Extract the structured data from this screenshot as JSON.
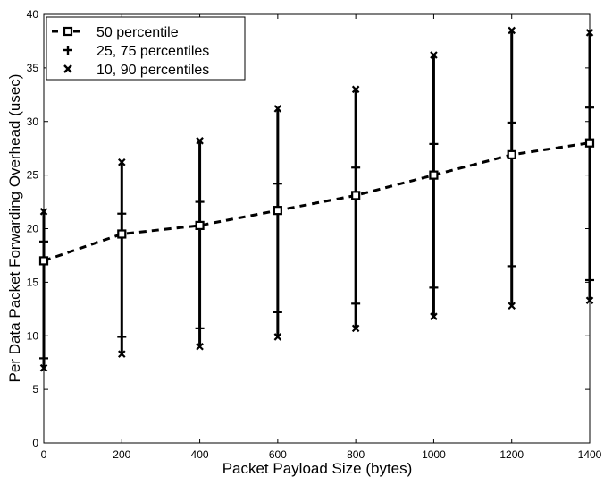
{
  "chart_data": {
    "type": "line",
    "xlabel": "Packet Payload Size (bytes)",
    "ylabel": "Per Data Packet Forwarding Overhead (usec)",
    "xlim": [
      0,
      1400
    ],
    "ylim": [
      0,
      40
    ],
    "xticks": [
      0,
      200,
      400,
      600,
      800,
      1000,
      1200,
      1400
    ],
    "yticks": [
      0,
      5,
      10,
      15,
      20,
      25,
      30,
      35,
      40
    ],
    "grid": false,
    "legend_position": "top-left",
    "x": [
      0,
      200,
      400,
      600,
      800,
      1000,
      1200,
      1400
    ],
    "series": [
      {
        "name": "50 percentile",
        "values": [
          17.0,
          19.5,
          20.3,
          21.7,
          23.1,
          25.0,
          26.9,
          28.0
        ]
      },
      {
        "name": "25, 75 percentiles",
        "low": [
          7.9,
          9.9,
          10.7,
          12.2,
          13.0,
          14.5,
          16.5,
          15.2
        ],
        "high": [
          18.8,
          21.4,
          22.5,
          24.2,
          25.7,
          27.9,
          29.9,
          31.3
        ]
      },
      {
        "name": "10, 90 percentiles",
        "low": [
          7.0,
          8.3,
          9.0,
          9.9,
          10.7,
          11.8,
          12.8,
          13.3
        ],
        "high": [
          21.6,
          26.2,
          28.2,
          31.2,
          33.0,
          36.2,
          38.5,
          38.3
        ]
      }
    ]
  }
}
